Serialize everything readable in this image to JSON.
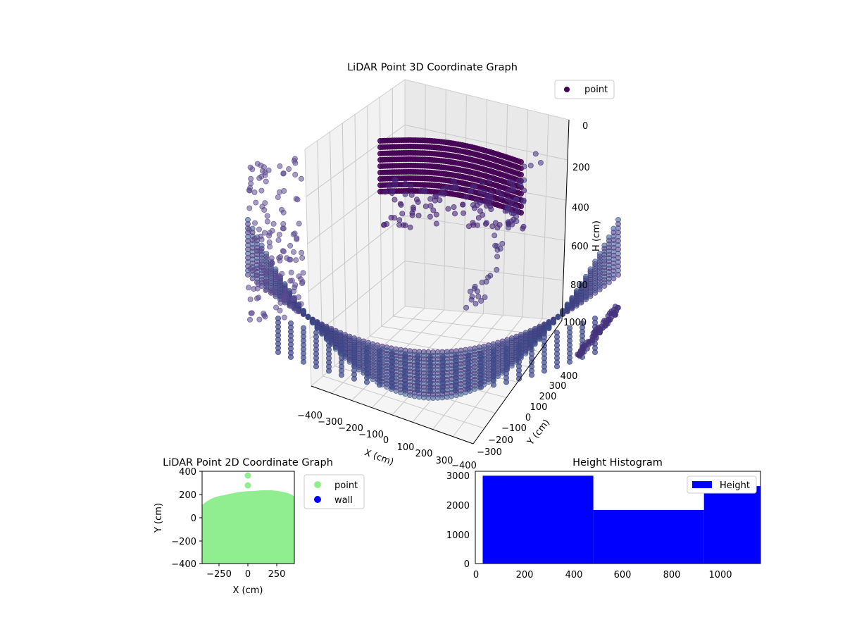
{
  "chart_data": [
    {
      "type": "scatter",
      "title": "LiDAR Point 3D Coordinate Graph",
      "xlabel": "X (cm)",
      "ylabel": "Y (cm)",
      "zlabel": "H (cm)",
      "xlim": [
        -400,
        400
      ],
      "ylim": [
        -400,
        400
      ],
      "zlim": [
        0,
        1000
      ],
      "z_inverted": true,
      "x_ticks": [
        "−400",
        "−300",
        "−200",
        "−100",
        "0",
        "100",
        "200",
        "300"
      ],
      "y_ticks": [
        "−400",
        "−300",
        "−200",
        "−100",
        "0",
        "100",
        "200",
        "300",
        "400"
      ],
      "z_ticks": [
        "0",
        "200",
        "400",
        "600",
        "800",
        "1000"
      ],
      "grid": true,
      "legend_position": "top-right",
      "series": [
        {
          "name": "point",
          "color": "#440154"
        }
      ]
    },
    {
      "type": "scatter",
      "title": "LiDAR Point 2D Coordinate Graph",
      "xlabel": "X (cm)",
      "ylabel": "Y (cm)",
      "xlim": [
        -400,
        400
      ],
      "ylim": [
        -400,
        400
      ],
      "x_ticks": [
        "−250",
        "0",
        "250"
      ],
      "y_ticks": [
        "400",
        "200",
        "0",
        "−200",
        "−400"
      ],
      "legend_position": "outside-right",
      "series": [
        {
          "name": "point",
          "color": "#90ee90"
        },
        {
          "name": "wall",
          "color": "#0000ff"
        }
      ]
    },
    {
      "type": "bar",
      "title": "Height Histogram",
      "xlim": [
        0,
        1160
      ],
      "ylim": [
        0,
        3100
      ],
      "x_ticks": [
        "0",
        "200",
        "400",
        "600",
        "800",
        "1000"
      ],
      "y_ticks": [
        "3000",
        "2000",
        "1000",
        "0"
      ],
      "legend_position": "top-right",
      "series": [
        {
          "name": "Height",
          "color": "#0000ff"
        }
      ],
      "bins": [
        {
          "x0": 30,
          "x1": 480,
          "count": 2950
        },
        {
          "x0": 480,
          "x1": 930,
          "count": 1800
        },
        {
          "x0": 930,
          "x1": 1160,
          "count": 2600
        }
      ]
    }
  ]
}
